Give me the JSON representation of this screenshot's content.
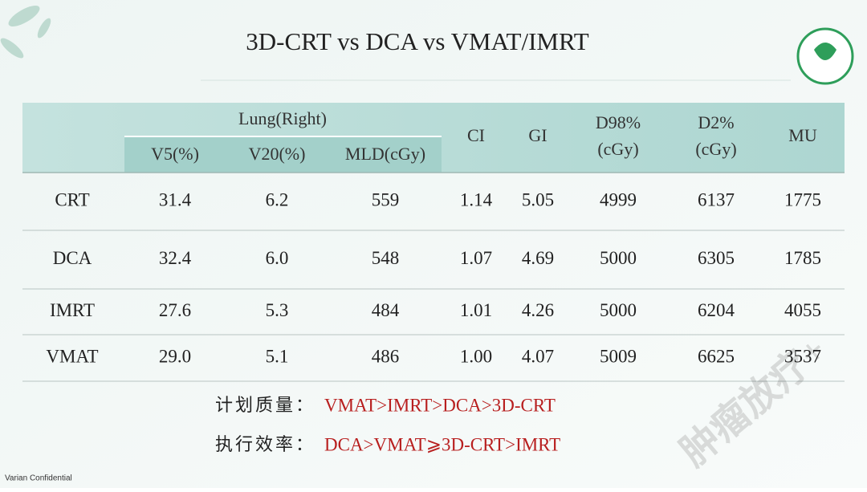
{
  "title": "3D-CRT vs DCA vs VMAT/IMRT",
  "table": {
    "group_header": "Lung(Right)",
    "sub_headers": [
      "V5(%)",
      "V20(%)",
      "MLD(cGy)"
    ],
    "headers": [
      [
        "CI"
      ],
      [
        "GI"
      ],
      [
        "D98%",
        "(cGy)"
      ],
      [
        "D2%",
        "(cGy)"
      ],
      [
        "MU"
      ]
    ],
    "rows": [
      [
        "CRT",
        "31.4",
        "6.2",
        "559",
        "1.14",
        "5.05",
        "4999",
        "6137",
        "1775"
      ],
      [
        "DCA",
        "32.4",
        "6.0",
        "548",
        "1.07",
        "4.69",
        "5000",
        "6305",
        "1785"
      ],
      [
        "IMRT",
        "27.6",
        "5.3",
        "484",
        "1.01",
        "4.26",
        "5000",
        "6204",
        "4055"
      ],
      [
        "VMAT",
        "29.0",
        "5.1",
        "486",
        "1.00",
        "4.07",
        "5009",
        "6625",
        "3537"
      ]
    ]
  },
  "notes": [
    {
      "label": "计划质量：",
      "text": "VMAT>IMRT>DCA>3D-CRT"
    },
    {
      "label": "执行效率：",
      "text": "DCA>VMAT⩾3D-CRT>IMRT"
    }
  ],
  "footer": "Varian Confidential",
  "watermark": "肿瘤放疗+"
}
